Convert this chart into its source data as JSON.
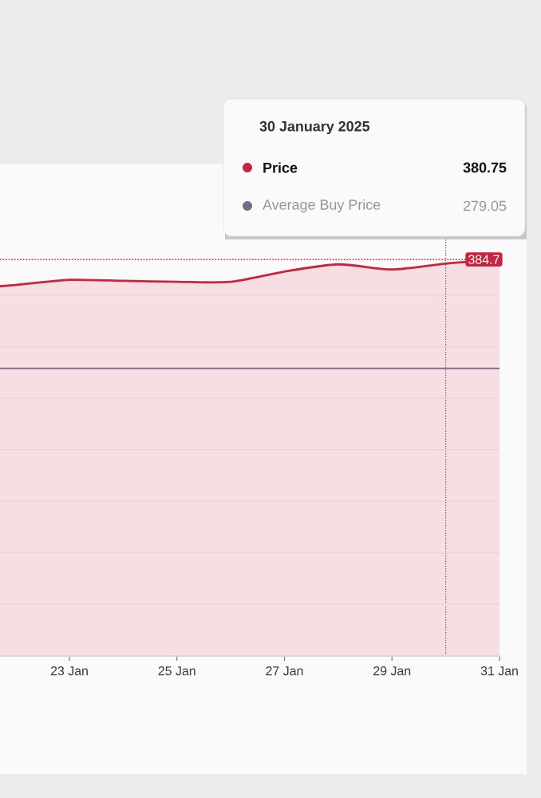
{
  "chart_data": {
    "type": "area",
    "x": [
      "2025-01-21T17:00",
      "2025-01-22",
      "2025-01-23",
      "2025-01-24",
      "2025-01-25",
      "2025-01-26",
      "2025-01-27",
      "2025-01-28",
      "2025-01-29",
      "2025-01-30",
      "2025-01-31"
    ],
    "series": [
      {
        "name": "Price",
        "color": "#c8233f",
        "values": [
          358.7,
          360,
          365,
          364,
          363,
          363,
          373,
          380,
          375,
          380.75,
          384.7
        ],
        "value_labels": [
          null,
          null,
          null,
          null,
          null,
          null,
          null,
          null,
          null,
          null,
          "384.7"
        ]
      }
    ],
    "xlim": [
      "2025-01-21T17:00",
      "2025-01-31"
    ],
    "xticks": [
      {
        "value": "2025-01-23",
        "label": "23 Jan"
      },
      {
        "value": "2025-01-25",
        "label": "25 Jan"
      },
      {
        "value": "2025-01-27",
        "label": "27 Jan"
      },
      {
        "value": "2025-01-29",
        "label": "29 Jan"
      },
      {
        "value": "2025-01-31",
        "label": "31 Jan"
      }
    ],
    "ylim": [
      0,
      477
    ],
    "yticks": [
      {
        "value": 50,
        "label": null
      },
      {
        "value": 100,
        "label": null
      },
      {
        "value": 150,
        "label": null
      },
      {
        "value": 200,
        "label": null
      },
      {
        "value": 250,
        "label": null
      },
      {
        "value": 300,
        "label": null
      },
      {
        "value": 350,
        "label": null
      }
    ],
    "tick_labels": "x",
    "grid": "y",
    "legend": "top right",
    "ref_lines": [
      {
        "axis": "y",
        "value": 279.05,
        "label": "Average Buy Price",
        "color": "#6b7088",
        "line_style": "solid"
      },
      {
        "axis": "y",
        "value": 384.7,
        "color": "#c8233f",
        "line_style": "dotted"
      },
      {
        "axis": "x",
        "value": "2025-01-30",
        "label": "30 January 2025",
        "color": "#555555",
        "line_style": "dotted"
      }
    ],
    "annotations": [
      "380.75",
      "279.05"
    ]
  }
}
